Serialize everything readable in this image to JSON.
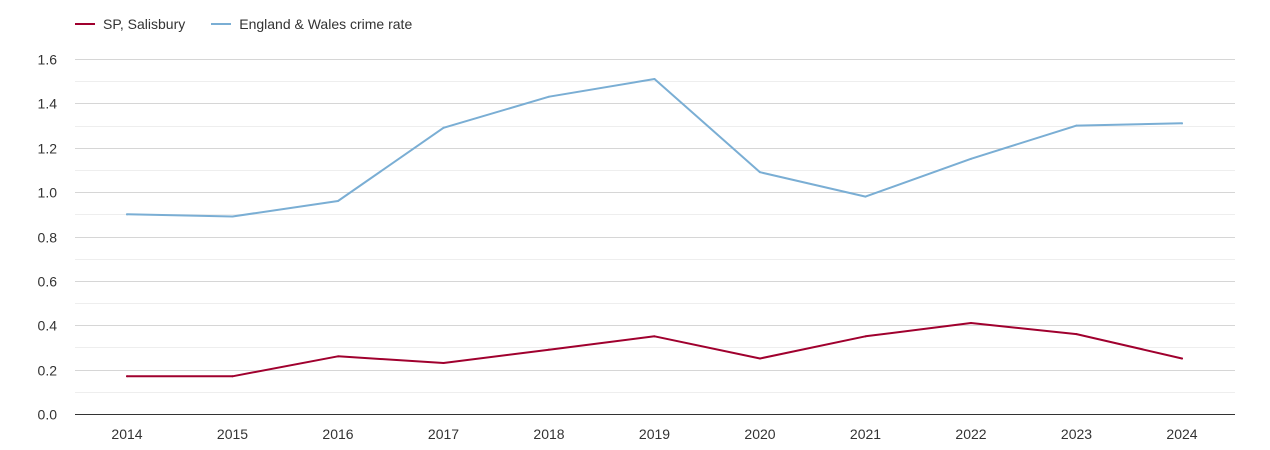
{
  "chart_data": {
    "type": "line",
    "categories": [
      "2014",
      "2015",
      "2016",
      "2017",
      "2018",
      "2019",
      "2020",
      "2021",
      "2022",
      "2023",
      "2024"
    ],
    "series": [
      {
        "name": "SP, Salisbury",
        "color": "#a0002e",
        "values": [
          0.17,
          0.17,
          0.26,
          0.23,
          0.29,
          0.35,
          0.25,
          0.35,
          0.41,
          0.36,
          0.25
        ]
      },
      {
        "name": "England & Wales crime rate",
        "color": "#7aaed4",
        "values": [
          0.9,
          0.89,
          0.96,
          1.29,
          1.43,
          1.51,
          1.09,
          0.98,
          1.15,
          1.3,
          1.31
        ]
      }
    ],
    "ylim": [
      0,
      1.6
    ],
    "yticks": [
      "0.0",
      "0.2",
      "0.4",
      "0.6",
      "0.8",
      "1.0",
      "1.2",
      "1.4",
      "1.6"
    ],
    "title": "",
    "xlabel": "",
    "ylabel": "",
    "grid": true,
    "legend_position": "top-left"
  }
}
